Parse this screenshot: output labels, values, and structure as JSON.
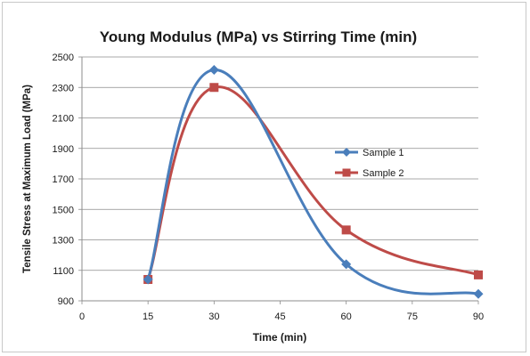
{
  "chart_data": {
    "type": "line",
    "title": "Young Modulus (MPa) vs Stirring Time (min)",
    "xlabel": "Time (min)",
    "ylabel": "Tensile Stress at Maximum Load (MPa)",
    "xlim": [
      0,
      90
    ],
    "ylim": [
      900,
      2500
    ],
    "xticks": [
      0,
      15,
      30,
      45,
      60,
      75,
      90
    ],
    "yticks": [
      900,
      1100,
      1300,
      1500,
      1700,
      1900,
      2100,
      2300,
      2500
    ],
    "grid": true,
    "legend_position": "right",
    "smooth": true,
    "series": [
      {
        "name": "Sample 1",
        "color": "#4a7ebb",
        "marker": "diamond",
        "x": [
          15,
          30,
          60,
          90
        ],
        "y": [
          1040,
          2415,
          1140,
          945
        ]
      },
      {
        "name": "Sample 2",
        "color": "#be4b48",
        "marker": "square",
        "x": [
          15,
          30,
          60,
          90
        ],
        "y": [
          1040,
          2300,
          1365,
          1070
        ]
      }
    ]
  }
}
